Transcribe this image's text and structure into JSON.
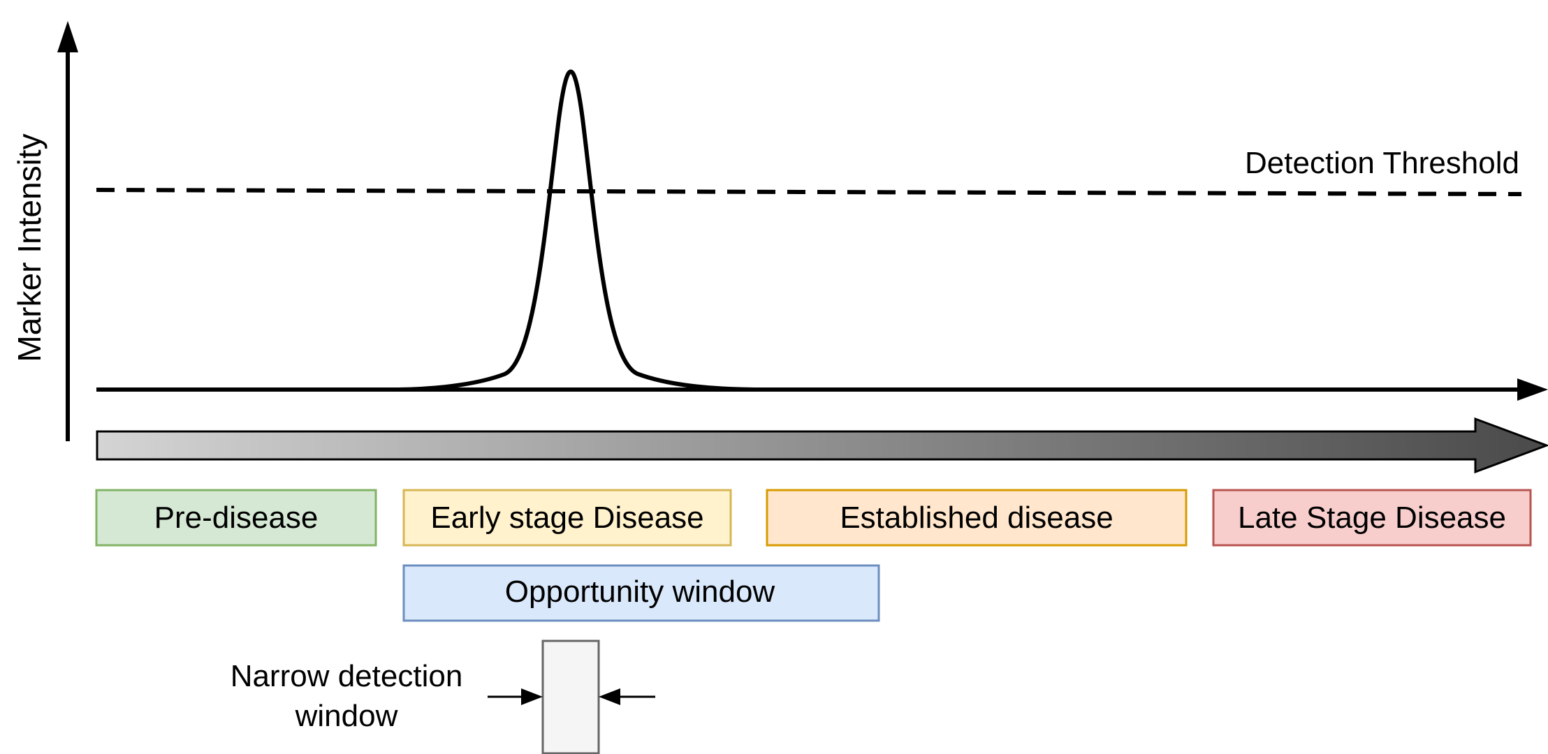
{
  "axis": {
    "y_label": "Marker Intensity"
  },
  "threshold": {
    "label": "Detection Threshold"
  },
  "stages": [
    {
      "label": "Pre-disease",
      "fill": "#d5e8d4",
      "stroke": "#82b366"
    },
    {
      "label": "Early stage Disease",
      "fill": "#fff2cc",
      "stroke": "#d6b656"
    },
    {
      "label": "Established disease",
      "fill": "#ffe6cc",
      "stroke": "#d79b00"
    },
    {
      "label": "Late Stage Disease",
      "fill": "#f8cecc",
      "stroke": "#b85450"
    }
  ],
  "opportunity": {
    "label": "Opportunity window",
    "fill": "#dae8fc",
    "stroke": "#6c8ebf"
  },
  "narrow_window": {
    "label_line1": "Narrow detection",
    "label_line2": "window",
    "fill": "#f5f5f5",
    "stroke": "#666666"
  },
  "progression_gradient": {
    "start_color": "#d4d4d4",
    "end_color": "#4a4a4a"
  }
}
